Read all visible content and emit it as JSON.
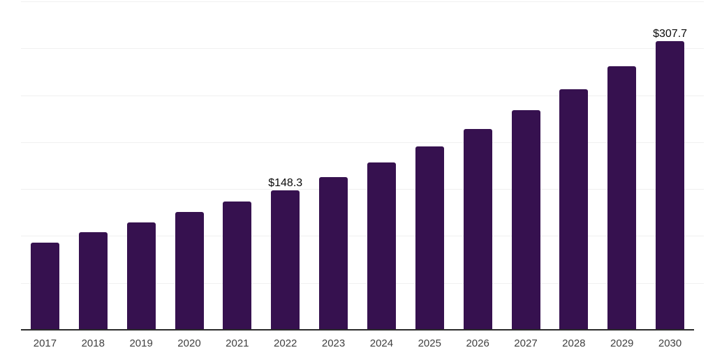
{
  "chart_data": {
    "type": "bar",
    "title": "",
    "xlabel": "",
    "ylabel": "",
    "categories": [
      "2017",
      "2018",
      "2019",
      "2020",
      "2021",
      "2022",
      "2023",
      "2024",
      "2025",
      "2026",
      "2027",
      "2028",
      "2029",
      "2030"
    ],
    "values": [
      93.0,
      103.9,
      114.8,
      125.4,
      136.6,
      148.3,
      162.5,
      178.1,
      195.1,
      213.8,
      234.2,
      256.6,
      281.2,
      307.7
    ],
    "data_labels": [
      {
        "category": "2022",
        "text": "$148.3"
      },
      {
        "category": "2030",
        "text": "$307.7"
      }
    ],
    "ylim": [
      0,
      350
    ],
    "gridline_step": 50,
    "grid": true,
    "legend": "none",
    "colors": {
      "bar": "#36114F",
      "axis_line": "#2b2b2b",
      "gridline": "#f0f0f0",
      "tick_label": "#404040",
      "data_label": "#0a0a0a",
      "background": "#ffffff"
    }
  }
}
